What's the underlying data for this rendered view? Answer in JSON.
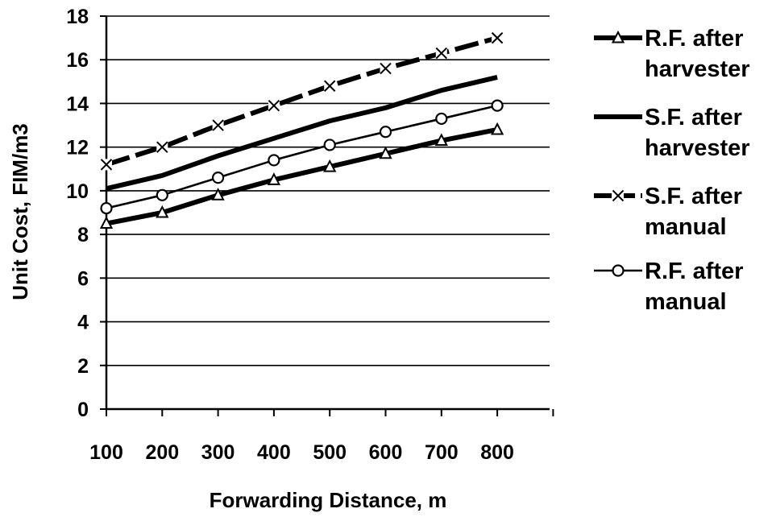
{
  "chart_data": {
    "type": "line",
    "title": "",
    "xlabel": "Forwarding Distance, m",
    "ylabel": "Unit Cost, FIM/m3",
    "x": [
      100,
      200,
      300,
      400,
      500,
      600,
      700,
      800
    ],
    "ylim": [
      0,
      18
    ],
    "yticks": [
      0,
      2,
      4,
      6,
      8,
      10,
      12,
      14,
      16,
      18
    ],
    "grid": "horizontal",
    "legend_position": "right",
    "series": [
      {
        "name": "R.F. after harvester",
        "marker": "triangle",
        "line": "thick-solid",
        "values": [
          8.5,
          9.0,
          9.8,
          10.5,
          11.1,
          11.7,
          12.3,
          12.8
        ]
      },
      {
        "name": "S.F. after harvester",
        "marker": "none",
        "line": "thick-solid",
        "values": [
          10.1,
          10.7,
          11.6,
          12.4,
          13.2,
          13.8,
          14.6,
          15.2
        ]
      },
      {
        "name": "S.F. after manual",
        "marker": "x",
        "line": "thick-dashed",
        "values": [
          11.2,
          12.0,
          13.0,
          13.9,
          14.8,
          15.6,
          16.3,
          17.0
        ]
      },
      {
        "name": "R.F. after manual",
        "marker": "circle",
        "line": "thin-solid",
        "values": [
          9.2,
          9.8,
          10.6,
          11.4,
          12.1,
          12.7,
          13.3,
          13.9
        ]
      }
    ],
    "legend": [
      {
        "series": 0,
        "lines": [
          "R.F. after",
          "harvester"
        ]
      },
      {
        "series": 1,
        "lines": [
          "S.F. after",
          "harvester"
        ]
      },
      {
        "series": 2,
        "lines": [
          "S.F. after",
          "manual"
        ]
      },
      {
        "series": 3,
        "lines": [
          "R.F. after",
          "manual"
        ]
      }
    ]
  }
}
